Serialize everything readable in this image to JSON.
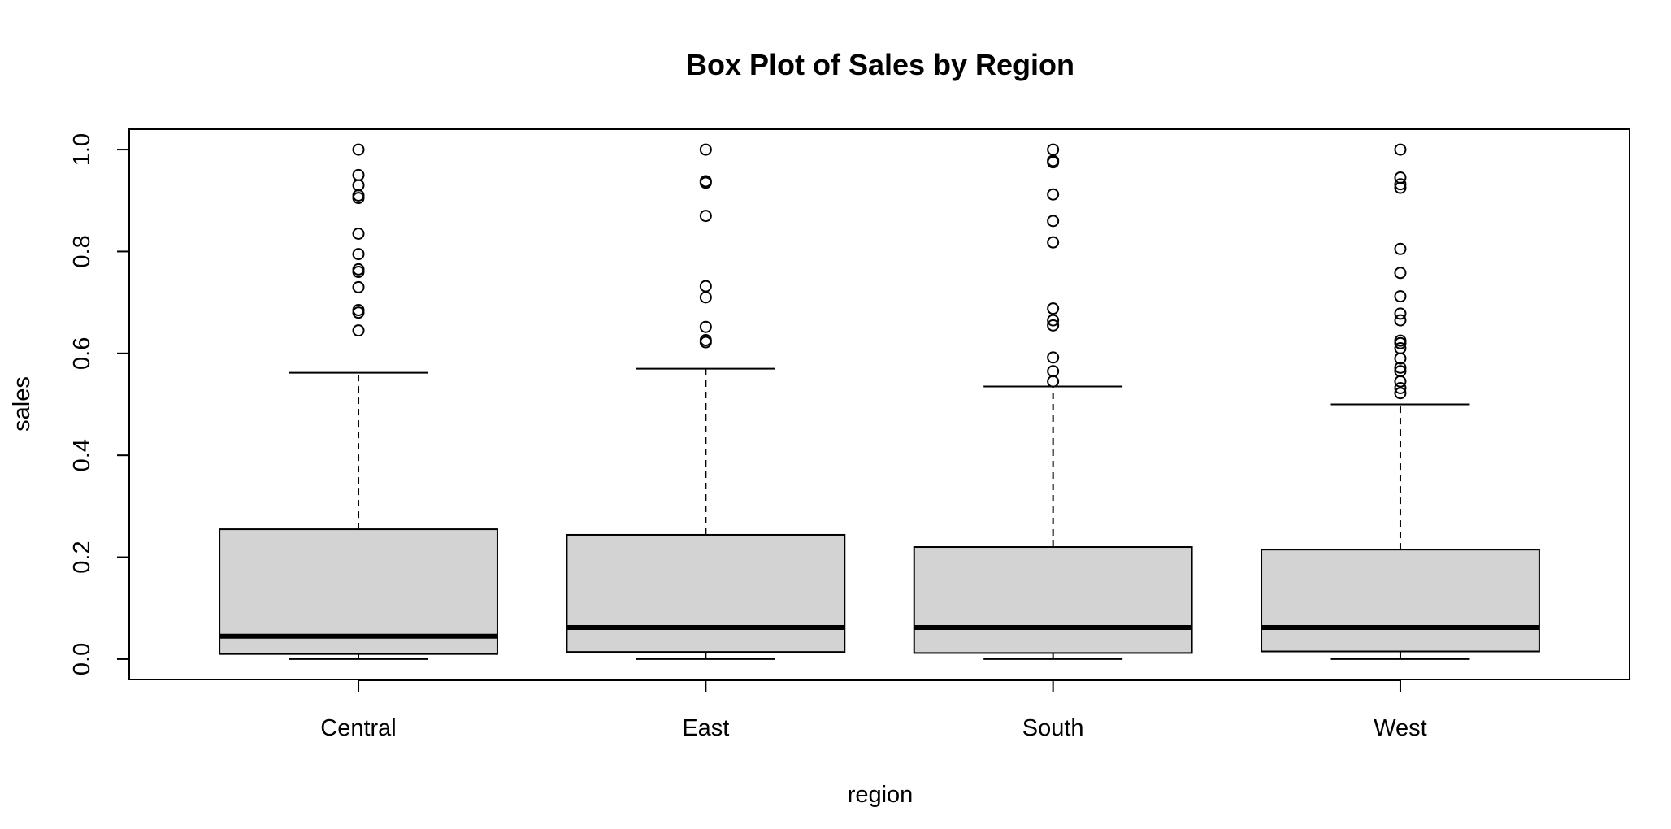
{
  "chart_data": {
    "type": "box",
    "title": "Box Plot of Sales by Region",
    "xlabel": "region",
    "ylabel": "sales",
    "ylim": [
      -0.04,
      1.04
    ],
    "yticks": [
      "0.0",
      "0.2",
      "0.4",
      "0.6",
      "0.8",
      "1.0"
    ],
    "grid": false,
    "colors": {
      "box_fill": "#d3d3d3",
      "stroke": "#000000",
      "background": "#ffffff"
    },
    "categories": [
      "Central",
      "East",
      "South",
      "West"
    ],
    "boxes": [
      {
        "category": "Central",
        "whisker_low": 0.0,
        "q1": 0.01,
        "median": 0.045,
        "q3": 0.255,
        "whisker_high": 0.562,
        "outliers": [
          0.645,
          0.68,
          0.685,
          0.73,
          0.76,
          0.765,
          0.795,
          0.835,
          0.905,
          0.91,
          0.93,
          0.95,
          1.0
        ]
      },
      {
        "category": "East",
        "whisker_low": 0.0,
        "q1": 0.014,
        "median": 0.062,
        "q3": 0.244,
        "whisker_high": 0.57,
        "outliers": [
          0.622,
          0.626,
          0.652,
          0.71,
          0.732,
          0.87,
          0.935,
          0.938,
          1.0
        ]
      },
      {
        "category": "South",
        "whisker_low": 0.0,
        "q1": 0.012,
        "median": 0.062,
        "q3": 0.22,
        "whisker_high": 0.535,
        "outliers": [
          0.545,
          0.565,
          0.592,
          0.655,
          0.665,
          0.688,
          0.818,
          0.86,
          0.912,
          0.975,
          0.978,
          1.0
        ]
      },
      {
        "category": "West",
        "whisker_low": 0.0,
        "q1": 0.015,
        "median": 0.062,
        "q3": 0.215,
        "whisker_high": 0.5,
        "outliers": [
          0.522,
          0.532,
          0.545,
          0.565,
          0.572,
          0.59,
          0.61,
          0.62,
          0.625,
          0.665,
          0.678,
          0.712,
          0.758,
          0.805,
          0.925,
          0.932,
          0.945,
          1.0
        ]
      }
    ]
  }
}
